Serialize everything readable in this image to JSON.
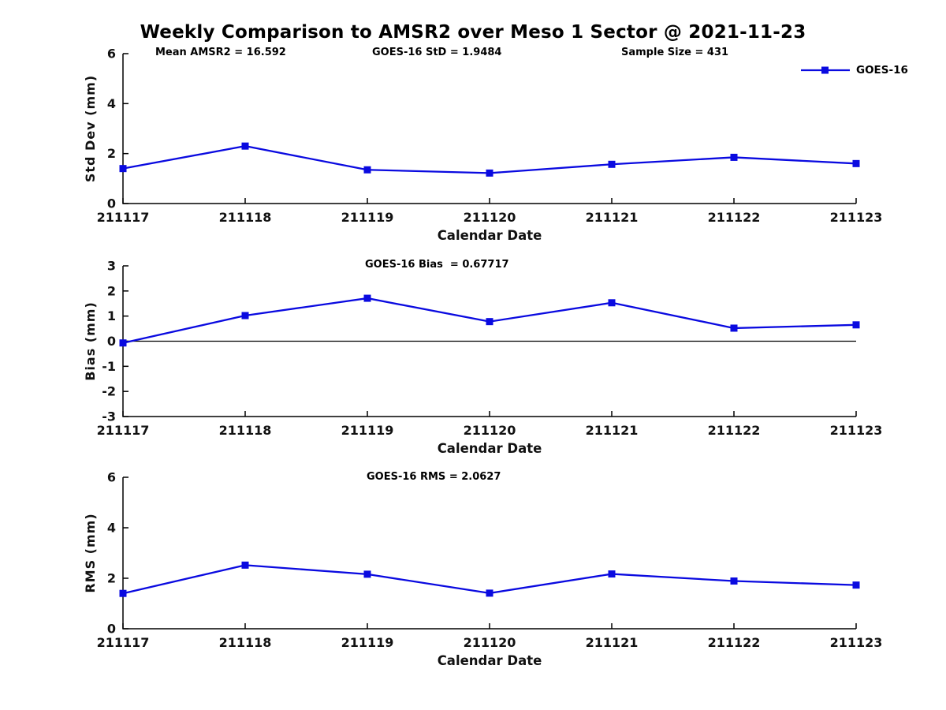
{
  "title": "Weekly Comparison to AMSR2 over Meso 1 Sector @ 2021-11-23",
  "legend": {
    "label": "GOES-16",
    "color": "#0a0ae0"
  },
  "line_color": "#0a0ae0",
  "axis_color": "#000000",
  "chart_data": [
    {
      "type": "line",
      "ylabel": "Std Dev (mm)",
      "xlabel": "Calendar Date",
      "x": [
        "211117",
        "211118",
        "211119",
        "211120",
        "211121",
        "211122",
        "211123"
      ],
      "series": [
        {
          "name": "GOES-16",
          "values": [
            1.4,
            2.3,
            1.35,
            1.22,
            1.57,
            1.85,
            1.6
          ]
        }
      ],
      "ylim": [
        0,
        6
      ],
      "yticks": [
        0,
        2,
        4,
        6
      ],
      "grid": false,
      "legend_position": "top-right",
      "annotations": [
        {
          "text": "Mean AMSR2 = 16.592"
        },
        {
          "text": "GOES-16 StD = 1.9484"
        },
        {
          "text": "Sample Size = 431"
        }
      ]
    },
    {
      "type": "line",
      "ylabel": "Bias (mm)",
      "xlabel": "Calendar Date",
      "x": [
        "211117",
        "211118",
        "211119",
        "211120",
        "211121",
        "211122",
        "211123"
      ],
      "series": [
        {
          "name": "GOES-16",
          "values": [
            -0.07,
            1.02,
            1.71,
            0.78,
            1.53,
            0.52,
            0.65
          ]
        }
      ],
      "ylim": [
        -3,
        3
      ],
      "yticks": [
        3,
        2,
        1,
        0,
        -1,
        -2,
        -3
      ],
      "zero_line": true,
      "grid": false,
      "annotations": [
        {
          "text": "GOES-16 Bias  = 0.67717"
        }
      ]
    },
    {
      "type": "line",
      "ylabel": "RMS (mm)",
      "xlabel": "Calendar Date",
      "x": [
        "211117",
        "211118",
        "211119",
        "211120",
        "211121",
        "211122",
        "211123"
      ],
      "series": [
        {
          "name": "GOES-16",
          "values": [
            1.4,
            2.52,
            2.16,
            1.41,
            2.17,
            1.89,
            1.73
          ]
        }
      ],
      "ylim": [
        0,
        6
      ],
      "yticks": [
        0,
        2,
        4,
        6
      ],
      "grid": false,
      "annotations": [
        {
          "text": "GOES-16 RMS = 2.0627"
        }
      ]
    }
  ]
}
